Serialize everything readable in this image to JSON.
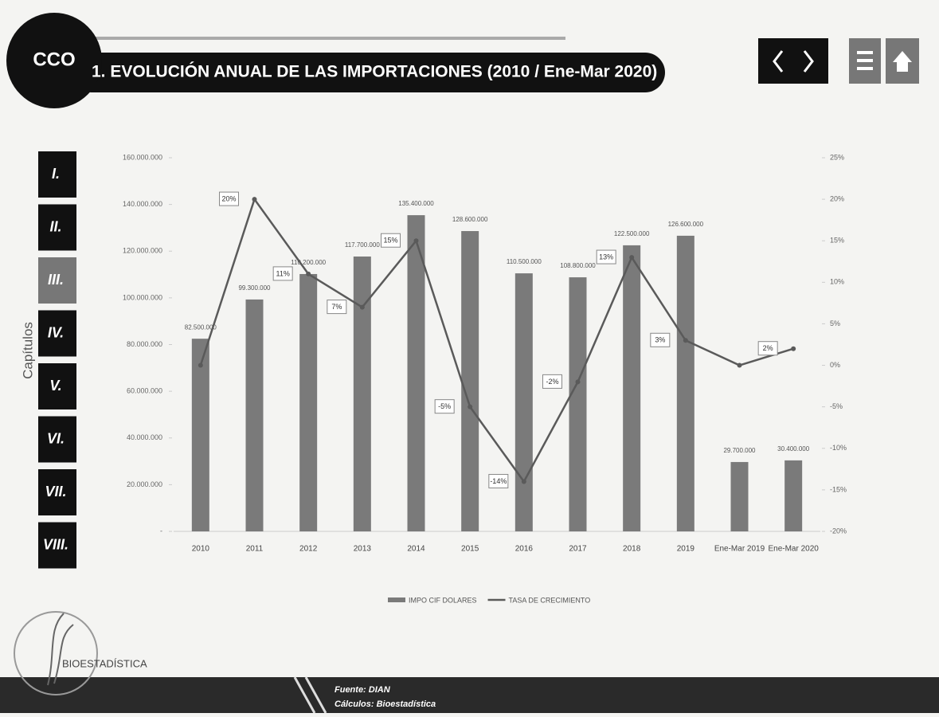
{
  "header": {
    "logo": "CCO",
    "title": "1. EVOLUCIÓN ANUAL DE LAS IMPORTACIONES (2010 / Ene-Mar 2020)"
  },
  "sidebar": {
    "label": "Capítulos",
    "chapters": [
      "I.",
      "II.",
      "III.",
      "IV.",
      "V.",
      "VI.",
      "VII.",
      "VIII."
    ]
  },
  "footer": {
    "brand": "BIOESTADÍSTICA",
    "source": "Fuente: DIAN",
    "calc": "Cálculos: Bioestadística"
  },
  "chart_data": {
    "type": "bar-line",
    "categories": [
      "2010",
      "2011",
      "2012",
      "2013",
      "2014",
      "2015",
      "2016",
      "2017",
      "2018",
      "2019",
      "Ene-Mar 2019",
      "Ene-Mar 2020"
    ],
    "series": [
      {
        "name": "IMPO CIF DOLARES",
        "type": "bar",
        "color": "#7a7a7a",
        "axis": "y",
        "values": [
          82500000,
          99300000,
          110200000,
          117700000,
          135400000,
          128600000,
          110500000,
          108800000,
          122500000,
          126600000,
          29700000,
          30400000
        ],
        "value_labels": [
          "82.500.000",
          "99.300.000",
          "110.200.000",
          "117.700.000",
          "135.400.000",
          "128.600.000",
          "110.500.000",
          "108.800.000",
          "122.500.000",
          "126.600.000",
          "29.700.000",
          "30.400.000"
        ]
      },
      {
        "name": "TASA DE CRECIMIENTO",
        "type": "line",
        "color": "#5a5a5a",
        "axis": "y2",
        "values": [
          0,
          20,
          11,
          7,
          15,
          -5,
          -14,
          -2,
          13,
          3,
          0,
          2
        ],
        "value_labels": [
          null,
          "20%",
          "11%",
          "7%",
          "15%",
          "-5%",
          "-14%",
          "-2%",
          "13%",
          "3%",
          null,
          "2%"
        ]
      }
    ],
    "ylim": [
      0,
      160000000
    ],
    "yticks": [
      {
        "value": 0,
        "label": "-"
      },
      {
        "value": 20000000,
        "label": "20.000.000"
      },
      {
        "value": 40000000,
        "label": "40.000.000"
      },
      {
        "value": 60000000,
        "label": "60.000.000"
      },
      {
        "value": 80000000,
        "label": "80.000.000"
      },
      {
        "value": 100000000,
        "label": "100.000.000"
      },
      {
        "value": 120000000,
        "label": "120.000.000"
      },
      {
        "value": 140000000,
        "label": "140.000.000"
      },
      {
        "value": 160000000,
        "label": "160.000.000"
      }
    ],
    "y2lim": [
      -20,
      25
    ],
    "y2ticks": [
      {
        "value": -20,
        "label": "-20%"
      },
      {
        "value": -15,
        "label": "-15%"
      },
      {
        "value": -10,
        "label": "-10%"
      },
      {
        "value": -5,
        "label": "-5%"
      },
      {
        "value": 0,
        "label": "0%"
      },
      {
        "value": 5,
        "label": "5%"
      },
      {
        "value": 10,
        "label": "10%"
      },
      {
        "value": 15,
        "label": "15%"
      },
      {
        "value": 20,
        "label": "20%"
      },
      {
        "value": 25,
        "label": "25%"
      }
    ],
    "grid": false,
    "legend": "bottom"
  }
}
